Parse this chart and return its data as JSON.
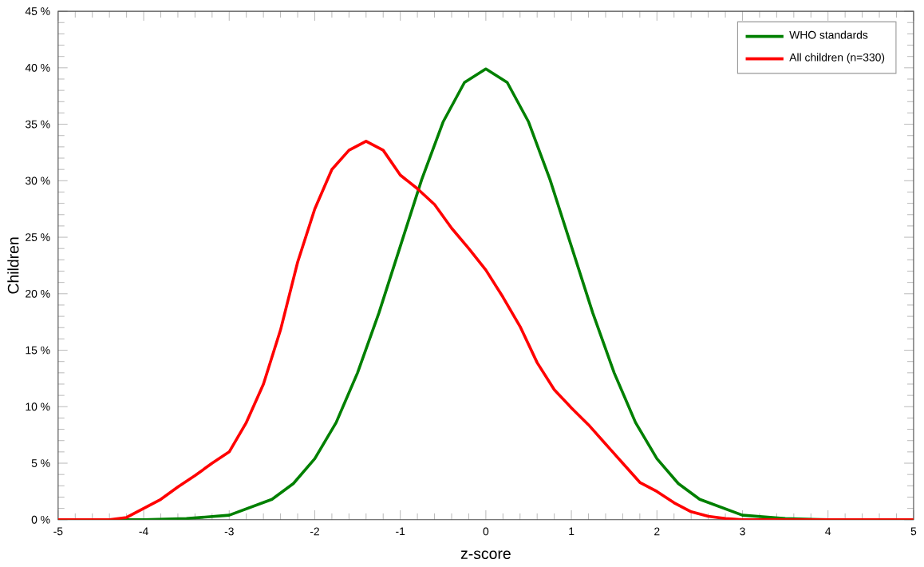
{
  "chart_data": {
    "type": "line",
    "xlabel": "z-score",
    "ylabel": "Children",
    "xlim": [
      -5,
      5
    ],
    "xticks": [
      -5,
      -4,
      -3,
      -2,
      -1,
      0,
      1,
      2,
      3,
      4,
      5
    ],
    "ylim": [
      0,
      45
    ],
    "yticks": [
      {
        "value": 0,
        "label": "0 %"
      },
      {
        "value": 5,
        "label": "5 %"
      },
      {
        "value": 10,
        "label": "10 %"
      },
      {
        "value": 15,
        "label": "15 %"
      },
      {
        "value": 20,
        "label": "20 %"
      },
      {
        "value": 25,
        "label": "25 %"
      },
      {
        "value": 30,
        "label": "30 %"
      },
      {
        "value": 35,
        "label": "35 %"
      },
      {
        "value": 40,
        "label": "40 %"
      },
      {
        "value": 45,
        "label": "45 %"
      }
    ],
    "grid": false,
    "legend": "top right",
    "marker": "none",
    "line_style": "solid",
    "series": [
      {
        "name": "WHO standards",
        "color": "#008000",
        "x": [
          -5,
          -4,
          -3.5,
          -3,
          -2.5,
          -2.25,
          -2,
          -1.75,
          -1.5,
          -1.25,
          -1,
          -0.75,
          -0.5,
          -0.25,
          0,
          0.25,
          0.5,
          0.75,
          1,
          1.25,
          1.5,
          1.75,
          2,
          2.25,
          2.5,
          3,
          3.5,
          4,
          5
        ],
        "values": [
          0,
          0,
          0.1,
          0.4,
          1.8,
          3.2,
          5.4,
          8.6,
          13,
          18.3,
          24.2,
          30.1,
          35.2,
          38.7,
          39.9,
          38.7,
          35.2,
          30.1,
          24.2,
          18.3,
          13,
          8.6,
          5.4,
          3.2,
          1.8,
          0.4,
          0.1,
          0,
          0
        ]
      },
      {
        "name": "All children (n=330)",
        "color": "#ff0000",
        "x": [
          -5,
          -4.4,
          -4.2,
          -4,
          -3.8,
          -3.6,
          -3.4,
          -3.2,
          -3,
          -2.8,
          -2.6,
          -2.4,
          -2.2,
          -2,
          -1.8,
          -1.6,
          -1.4,
          -1.2,
          -1,
          -0.8,
          -0.6,
          -0.4,
          -0.2,
          0,
          0.2,
          0.4,
          0.6,
          0.8,
          1,
          1.2,
          1.4,
          1.6,
          1.8,
          2,
          2.2,
          2.4,
          2.6,
          2.8,
          3,
          5
        ],
        "values": [
          0,
          0,
          0.2,
          1,
          1.8,
          2.9,
          3.9,
          5,
          6,
          8.6,
          12,
          16.8,
          22.8,
          27.5,
          31,
          32.7,
          33.5,
          32.7,
          30.5,
          29.3,
          27.9,
          25.8,
          24,
          22.1,
          19.7,
          17.1,
          13.9,
          11.5,
          9.9,
          8.4,
          6.7,
          5,
          3.3,
          2.5,
          1.5,
          0.7,
          0.3,
          0.1,
          0,
          0
        ]
      }
    ]
  }
}
